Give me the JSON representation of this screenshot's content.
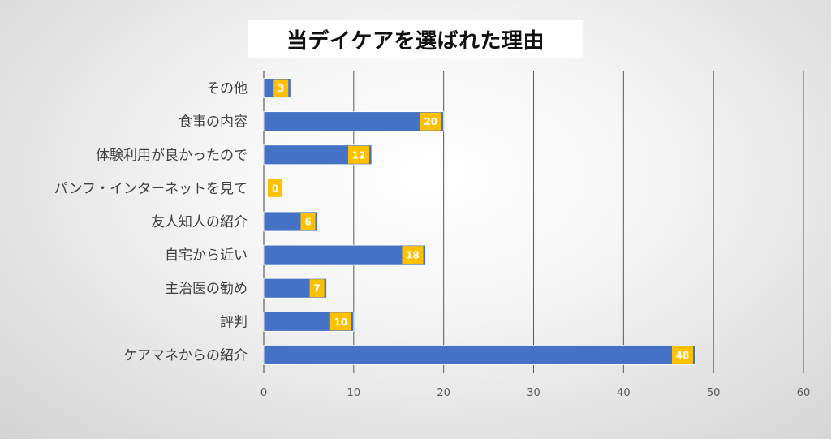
{
  "chart_data": {
    "type": "bar",
    "orientation": "horizontal",
    "title": "当デイケアを選ばれた理由",
    "categories": [
      "その他",
      "食事の内容",
      "体験利用が良かったので",
      "パンフ・インターネットを見て",
      "友人知人の紹介",
      "自宅から近い",
      "主治医の勧め",
      "評判",
      "ケアマネからの紹介"
    ],
    "values": [
      3,
      20,
      12,
      0,
      6,
      18,
      7,
      10,
      48
    ],
    "xlim": [
      0,
      60
    ],
    "x_ticks": [
      0,
      10,
      20,
      30,
      40,
      50,
      60
    ],
    "grid": "vertical",
    "legend": "none",
    "colors": {
      "bar": "#4472C4",
      "label_box": "#FFC000",
      "grid": "#595959",
      "title_box": "#FFFFFF"
    }
  }
}
